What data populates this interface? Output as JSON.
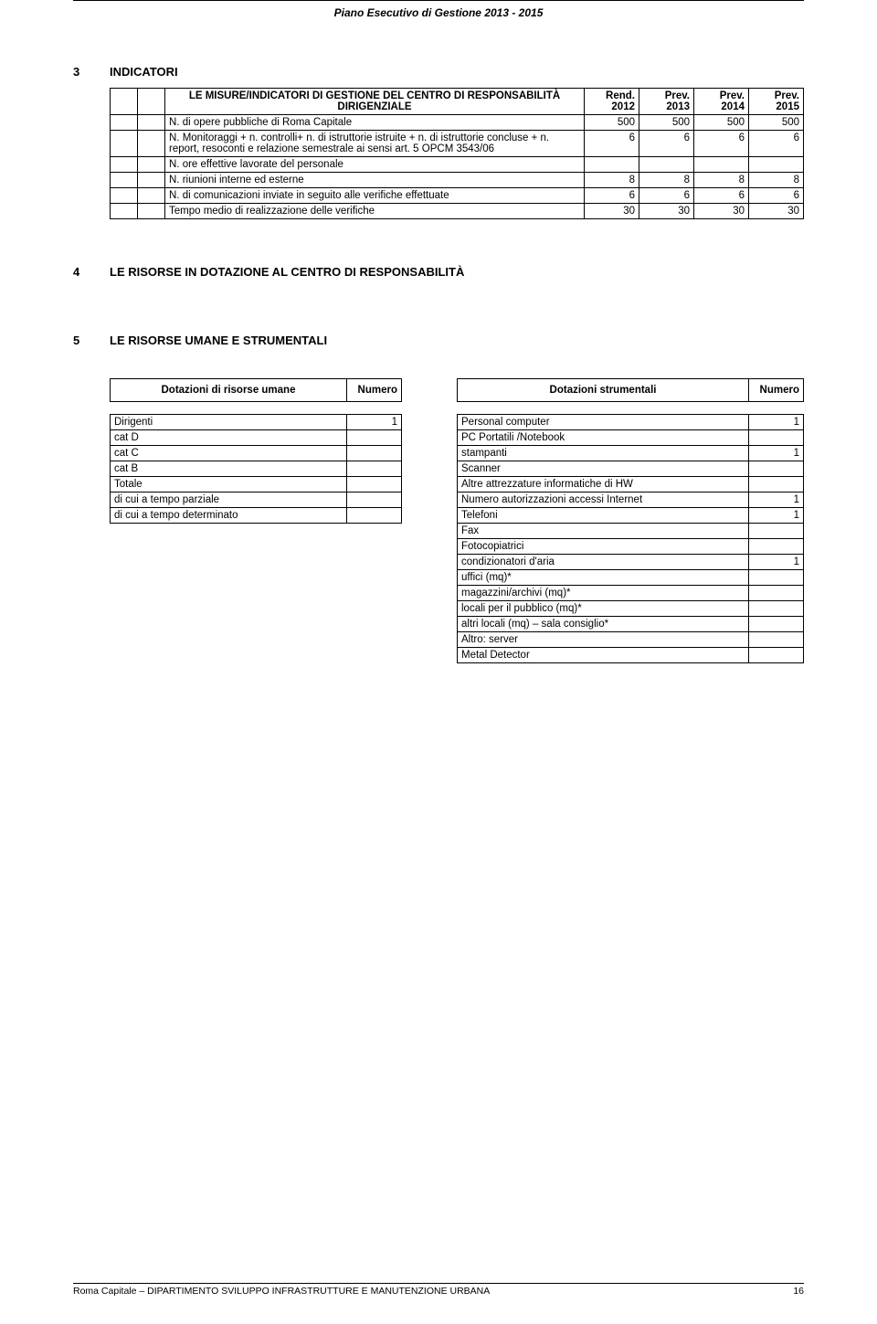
{
  "header": {
    "title": "Piano Esecutivo di Gestione 2013 - 2015"
  },
  "section3": {
    "num": "3",
    "title": "INDICATORI",
    "table": {
      "header_label": "LE MISURE/INDICATORI DI GESTIONE DEL CENTRO DI RESPONSABILITÀ DIRIGENZIALE",
      "cols": [
        "Rend. 2012",
        "Prev. 2013",
        "Prev. 2014",
        "Prev. 2015"
      ],
      "rows": [
        {
          "label": "N. di opere pubbliche di Roma Capitale",
          "vals": [
            "500",
            "500",
            "500",
            "500"
          ]
        },
        {
          "label": "N. Monitoraggi + n. controlli+ n. di istruttorie istruite + n. di istruttorie concluse + n. report, resoconti e relazione semestrale ai sensi art. 5 OPCM 3543/06",
          "vals": [
            "6",
            "6",
            "6",
            "6"
          ]
        },
        {
          "label": "N. ore effettive lavorate del personale",
          "vals": [
            "",
            "",
            "",
            ""
          ]
        },
        {
          "label": "N. riunioni interne ed esterne",
          "vals": [
            "8",
            "8",
            "8",
            "8"
          ]
        },
        {
          "label": "N. di comunicazioni inviate in seguito alle verifiche effettuate",
          "vals": [
            "6",
            "6",
            "6",
            "6"
          ]
        },
        {
          "label": "Tempo medio di realizzazione delle verifiche",
          "vals": [
            "30",
            "30",
            "30",
            "30"
          ]
        }
      ]
    }
  },
  "section4": {
    "num": "4",
    "title": "LE RISORSE IN DOTAZIONE AL CENTRO DI RESPONSABILITÀ"
  },
  "section5": {
    "num": "5",
    "title": "LE RISORSE UMANE E STRUMENTALI",
    "left_table": {
      "header_label": "Dotazioni di risorse umane",
      "header_num": "Numero",
      "rows": [
        {
          "label": "Dirigenti",
          "val": "1"
        },
        {
          "label": "cat D",
          "val": ""
        },
        {
          "label": "cat C",
          "val": ""
        },
        {
          "label": "cat B",
          "val": ""
        },
        {
          "label": "Totale",
          "val": ""
        },
        {
          "label": "di cui a tempo parziale",
          "val": ""
        },
        {
          "label": "di cui a tempo determinato",
          "val": ""
        }
      ]
    },
    "right_table": {
      "header_label": "Dotazioni strumentali",
      "header_num": "Numero",
      "rows": [
        {
          "label": "Personal computer",
          "val": "1"
        },
        {
          "label": "PC Portatili /Notebook",
          "val": ""
        },
        {
          "label": "stampanti",
          "val": "1"
        },
        {
          "label": "Scanner",
          "val": ""
        },
        {
          "label": "Altre attrezzature informatiche di HW",
          "val": ""
        },
        {
          "label": "Numero autorizzazioni accessi Internet",
          "val": "1"
        },
        {
          "label": "Telefoni",
          "val": "1"
        },
        {
          "label": "Fax",
          "val": ""
        },
        {
          "label": "Fotocopiatrici",
          "val": ""
        },
        {
          "label": "condizionatori d'aria",
          "val": "1"
        },
        {
          "label": "uffici (mq)*",
          "val": ""
        },
        {
          "label": "magazzini/archivi (mq)*",
          "val": ""
        },
        {
          "label": "locali per il pubblico (mq)*",
          "val": ""
        },
        {
          "label": "altri locali (mq) – sala consiglio*",
          "val": ""
        },
        {
          "label": "Altro: server",
          "val": ""
        },
        {
          "label": "Metal Detector",
          "val": ""
        }
      ]
    }
  },
  "footer": {
    "text": "Roma Capitale – DIPARTIMENTO SVILUPPO INFRASTRUTTURE E MANUTENZIONE URBANA",
    "page": "16"
  }
}
